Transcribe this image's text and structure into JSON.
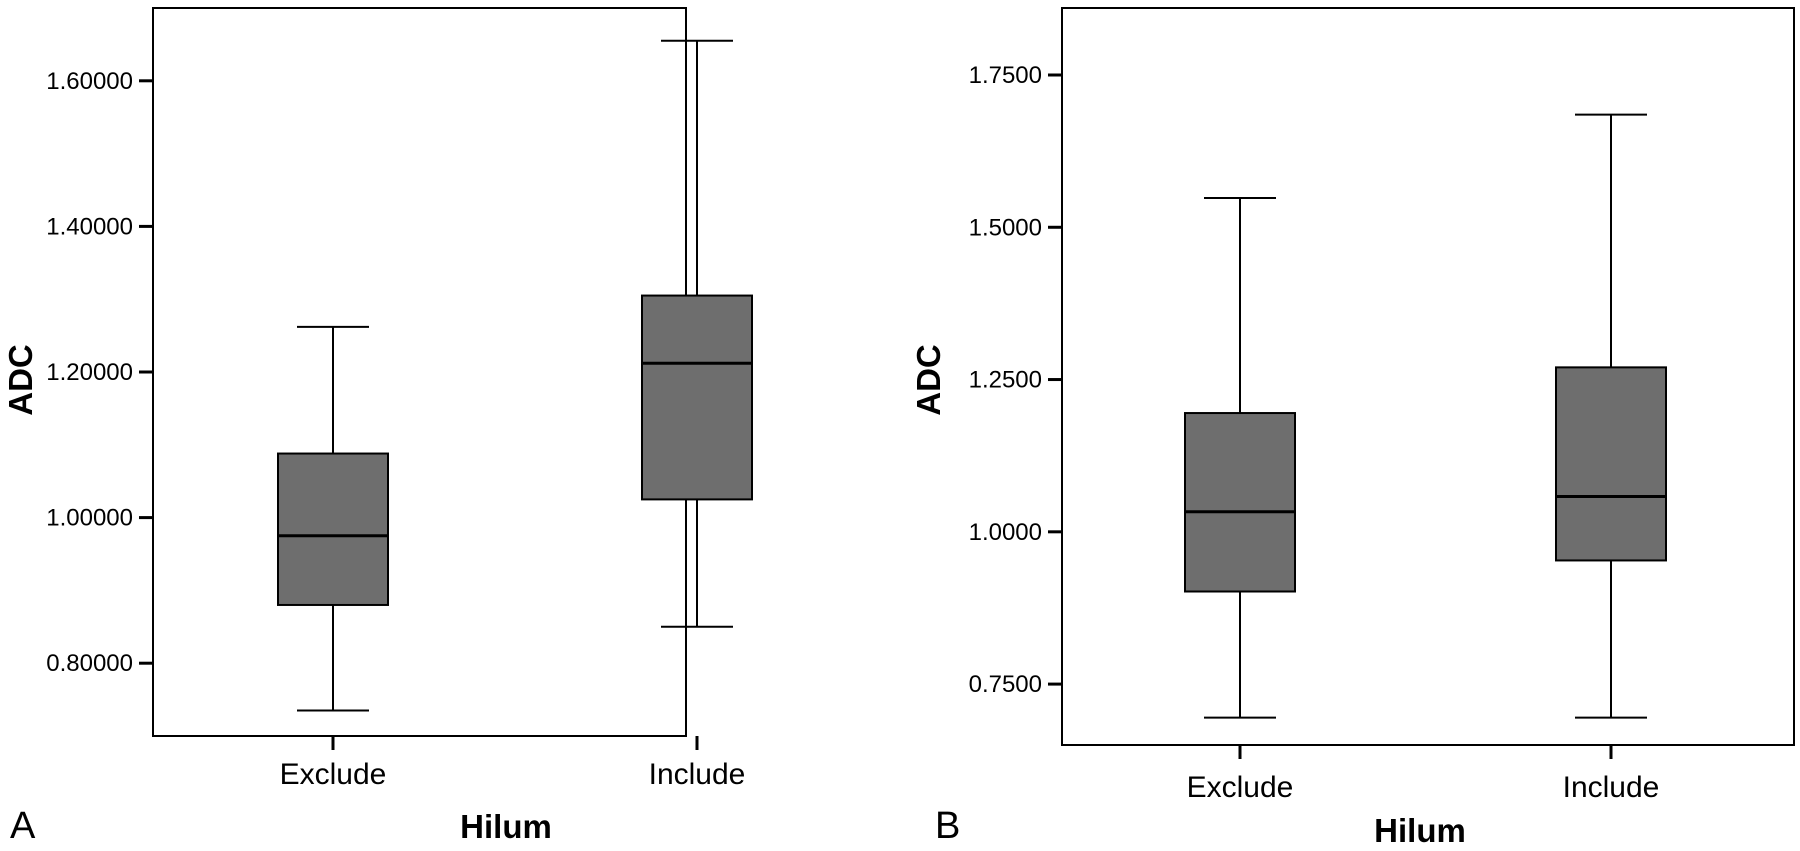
{
  "chart_data": [
    {
      "type": "box",
      "panel_label": "A",
      "xlabel": "Hilum",
      "ylabel": "ADC",
      "ylim": [
        0.7,
        1.7
      ],
      "yticks": [
        0.8,
        1.0,
        1.2,
        1.4,
        1.6
      ],
      "ytick_labels": [
        "0.80000",
        "1.00000",
        "1.20000",
        "1.40000",
        "1.60000"
      ],
      "categories": [
        "Exclude",
        "Include"
      ],
      "boxes": [
        {
          "min": 0.735,
          "q1": 0.88,
          "median": 0.975,
          "q3": 1.088,
          "max": 1.262
        },
        {
          "min": 0.85,
          "q1": 1.025,
          "median": 1.212,
          "q3": 1.305,
          "max": 1.655
        }
      ],
      "box_color": "#6e6e6e"
    },
    {
      "type": "box",
      "panel_label": "B",
      "xlabel": "Hilum",
      "ylabel": "ADC",
      "ylim": [
        0.65,
        1.86
      ],
      "yticks": [
        0.75,
        1.0,
        1.25,
        1.5,
        1.75
      ],
      "ytick_labels": [
        "0.7500",
        "1.0000",
        "1.2500",
        "1.5000",
        "1.7500"
      ],
      "categories": [
        "Exclude",
        "Include"
      ],
      "boxes": [
        {
          "min": 0.695,
          "q1": 0.902,
          "median": 1.033,
          "q3": 1.195,
          "max": 1.548
        },
        {
          "min": 0.695,
          "q1": 0.953,
          "median": 1.058,
          "q3": 1.27,
          "max": 1.685
        }
      ],
      "box_color": "#6e6e6e"
    }
  ]
}
